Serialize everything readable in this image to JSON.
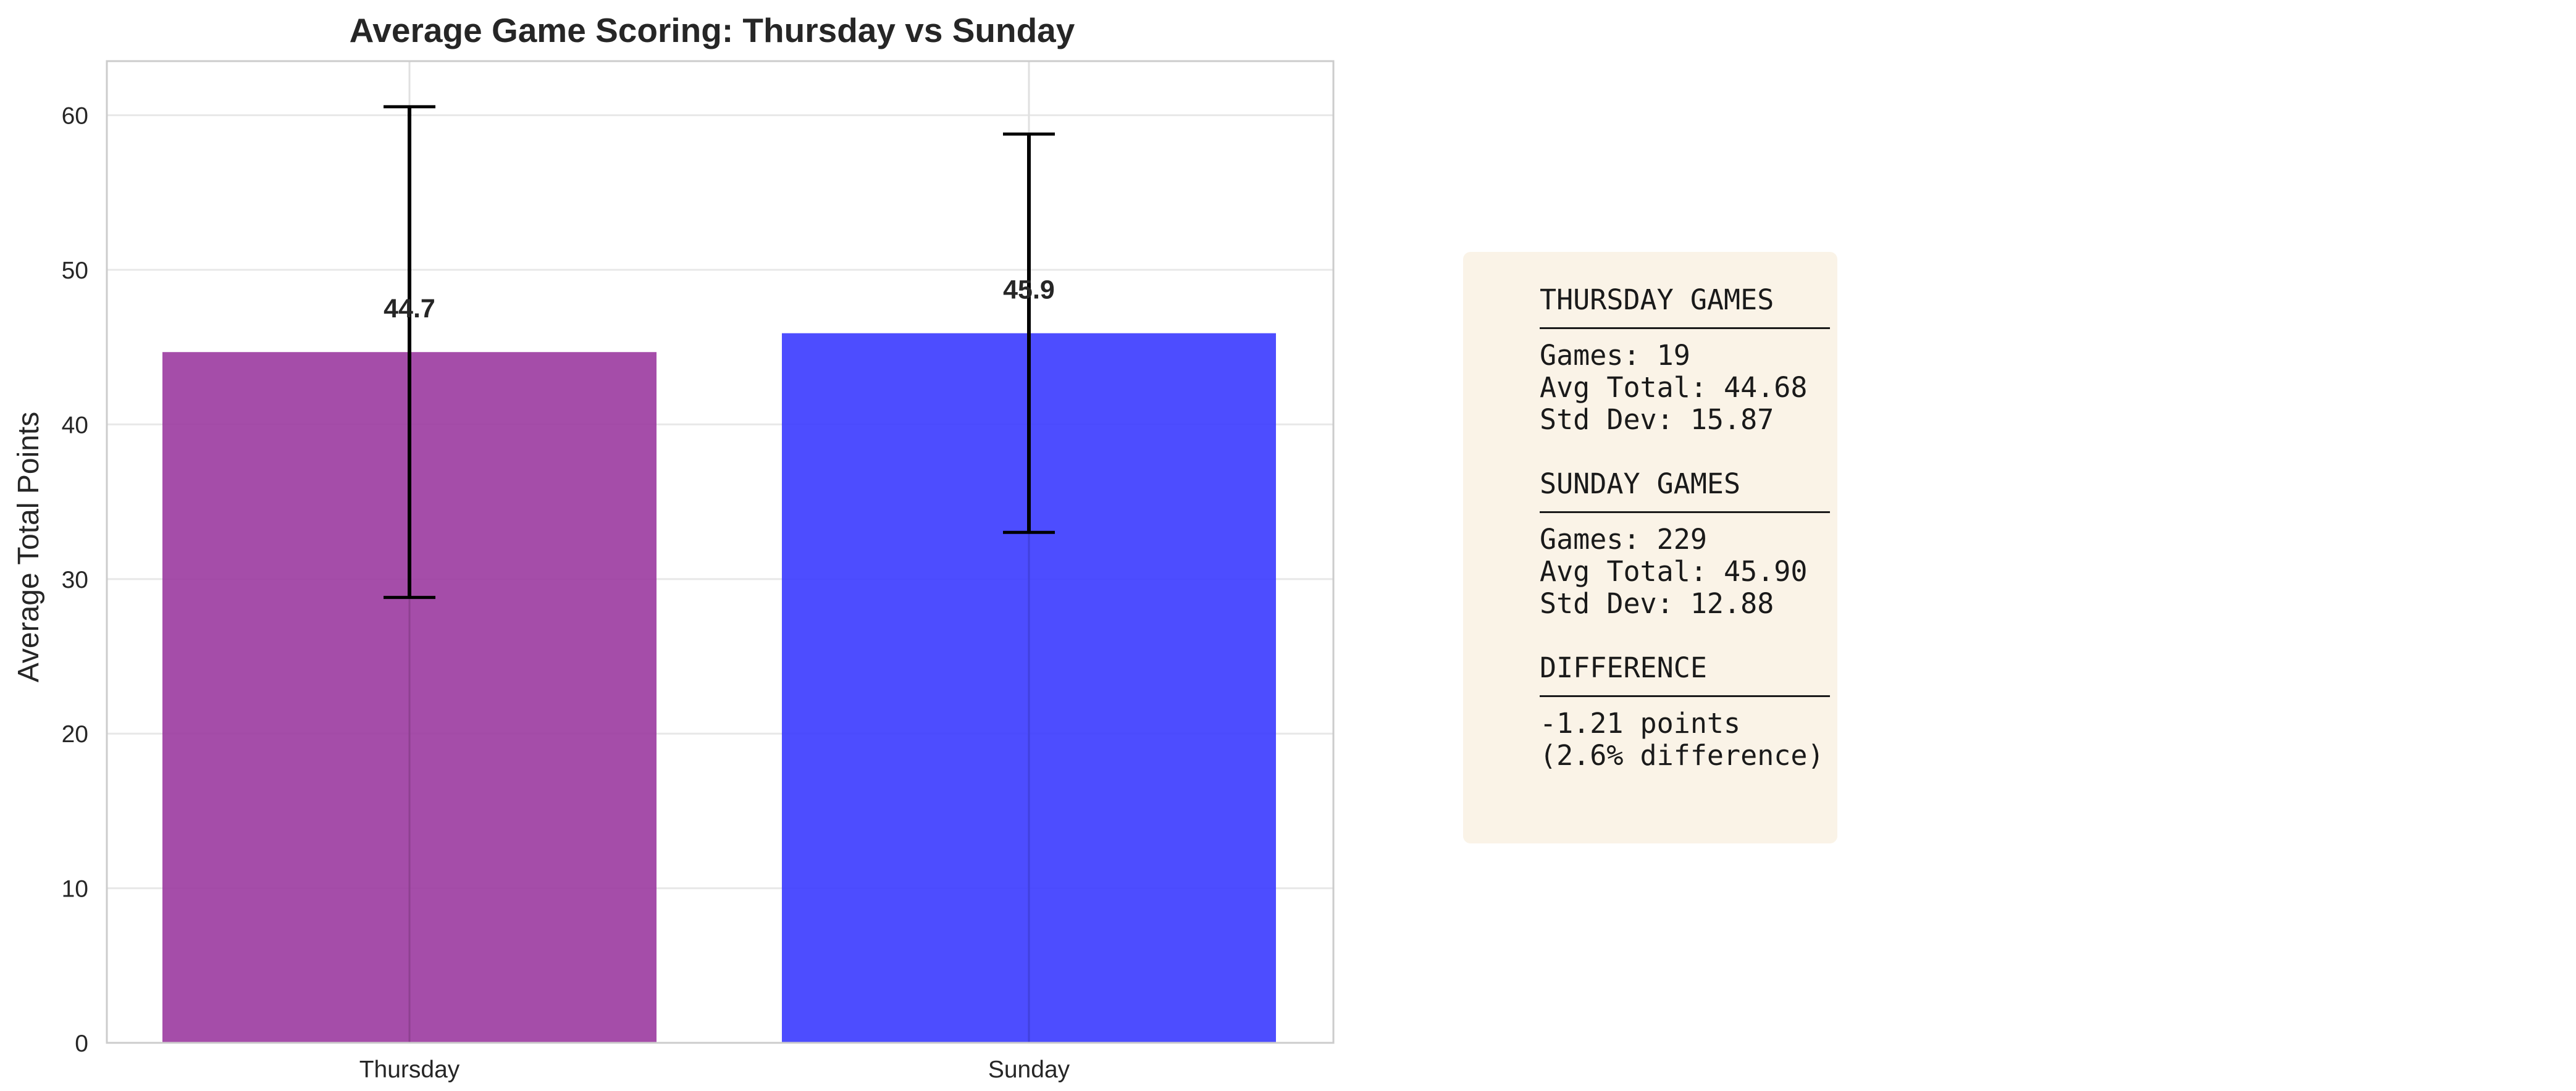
{
  "chart_data": {
    "type": "bar",
    "title": "Average Game Scoring: Thursday vs Sunday",
    "xlabel": "",
    "ylabel": "Average Total Points",
    "categories": [
      "Thursday",
      "Sunday"
    ],
    "values": [
      44.68,
      45.9
    ],
    "value_labels": [
      "44.7",
      "45.9"
    ],
    "error_bars": [
      15.87,
      12.88
    ],
    "bar_colors": [
      "#9b3aa0",
      "#3a3aff"
    ],
    "bar_opacity": 0.9,
    "ylim": [
      0,
      63.5
    ],
    "yticks": [
      0,
      10,
      20,
      30,
      40,
      50,
      60
    ],
    "grid": true,
    "legend": "none"
  },
  "stats_box": {
    "sections": [
      {
        "heading": "THURSDAY GAMES",
        "lines": [
          "Games: 19",
          "Avg Total: 44.68",
          "Std Dev: 15.87"
        ]
      },
      {
        "heading": "SUNDAY GAMES",
        "lines": [
          "Games: 229",
          "Avg Total: 45.90",
          "Std Dev: 12.88"
        ]
      },
      {
        "heading": "DIFFERENCE",
        "lines": [
          "-1.21 points",
          "(2.6% difference)"
        ]
      }
    ]
  }
}
